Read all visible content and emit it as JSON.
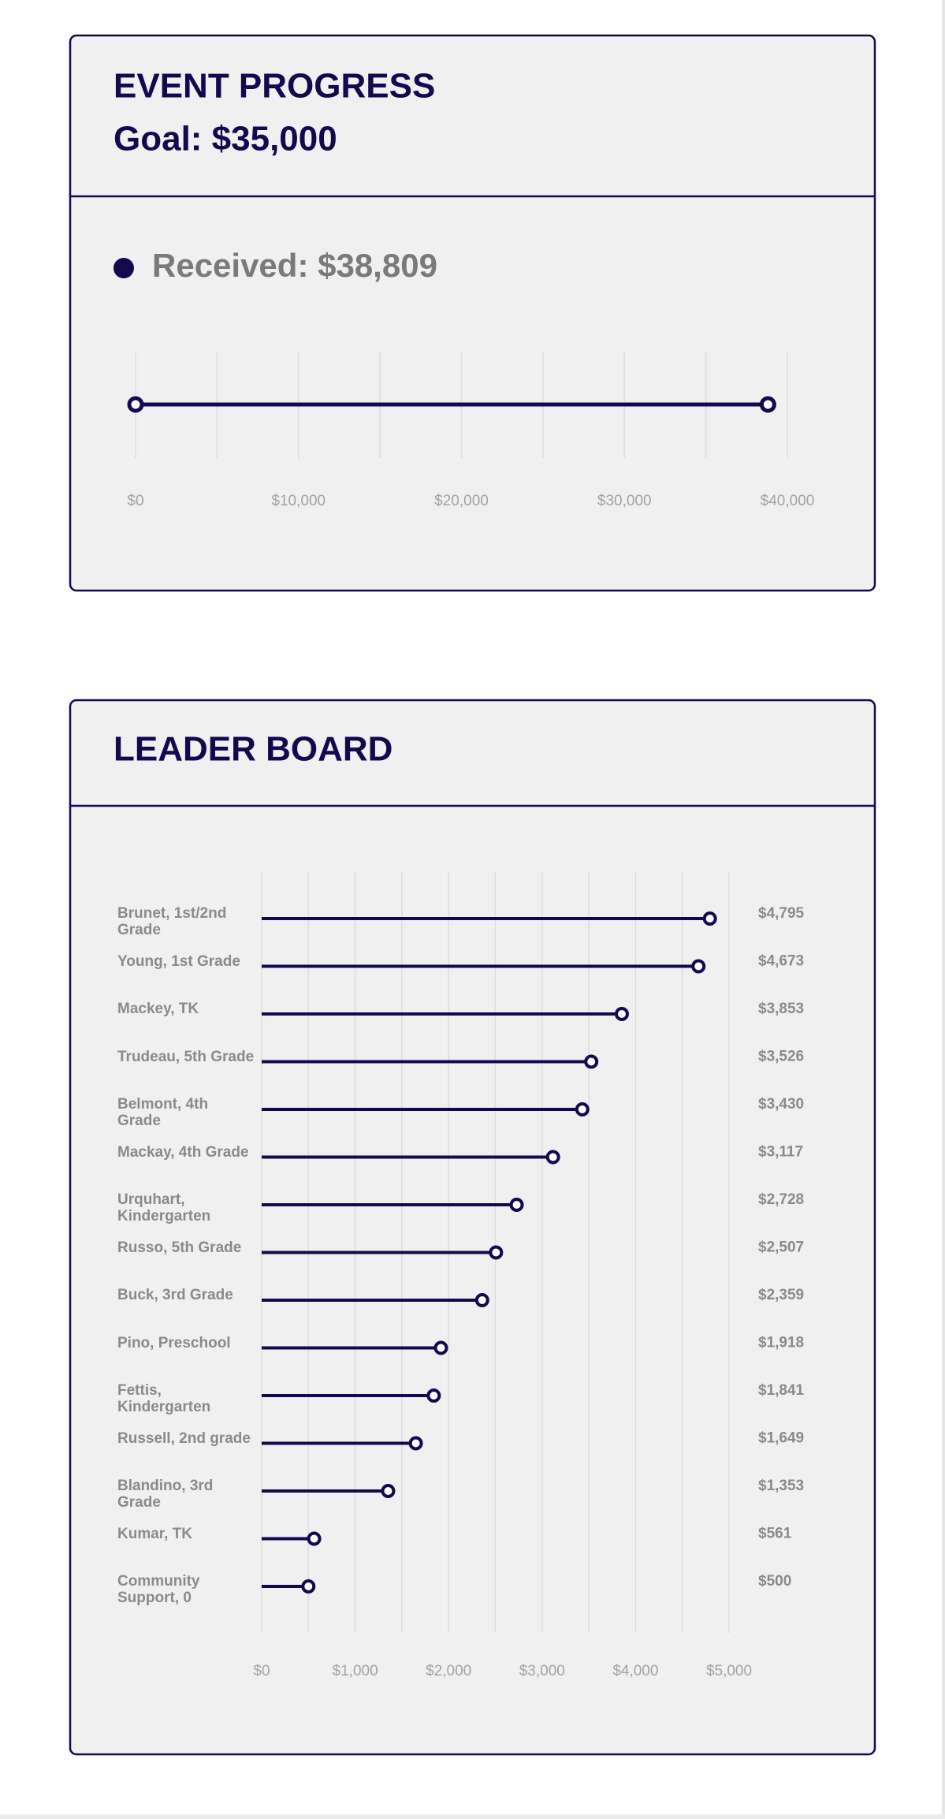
{
  "chart_data": [
    {
      "type": "progress",
      "title": "EVENT PROGRESS",
      "subtitle": "Goal: $35,000",
      "series": [
        {
          "name": "Received: $38,809",
          "color": "#14084f",
          "values": [
            38809
          ]
        }
      ],
      "xlim": [
        0,
        40000
      ],
      "xticks": [
        {
          "value": 0,
          "label": "$0"
        },
        {
          "value": 10000,
          "label": "$10,000"
        },
        {
          "value": 20000,
          "label": "$20,000"
        },
        {
          "value": 30000,
          "label": "$30,000"
        },
        {
          "value": 40000,
          "label": "$40,000"
        }
      ],
      "minor_xticks": [
        5000,
        15000,
        25000,
        35000
      ],
      "grid": true
    },
    {
      "type": "lollipop",
      "title": "LEADER BOARD",
      "categories": [
        "Brunet, 1st/2nd Grade",
        "Young, 1st Grade",
        "Mackey, TK",
        "Trudeau, 5th Grade",
        "Belmont, 4th Grade",
        "Mackay, 4th Grade",
        "Urquhart, Kindergarten",
        "Russo, 5th Grade",
        "Buck, 3rd Grade",
        "Pino, Preschool",
        "Fettis, Kindergarten",
        "Russell, 2nd grade",
        "Blandino, 3rd Grade",
        "Kumar, TK",
        "Community Support, 0"
      ],
      "values": [
        4795,
        4673,
        3853,
        3526,
        3430,
        3117,
        2728,
        2507,
        2359,
        1918,
        1841,
        1649,
        1353,
        561,
        500
      ],
      "value_labels": [
        "$4,795",
        "$4,673",
        "$3,853",
        "$3,526",
        "$3,430",
        "$3,117",
        "$2,728",
        "$2,507",
        "$2,359",
        "$1,918",
        "$1,841",
        "$1,649",
        "$1,353",
        "$561",
        "$500"
      ],
      "color": "#14084f",
      "xlim": [
        0,
        5000
      ],
      "xticks": [
        {
          "value": 0,
          "label": "$0"
        },
        {
          "value": 1000,
          "label": "$1,000"
        },
        {
          "value": 2000,
          "label": "$2,000"
        },
        {
          "value": 3000,
          "label": "$3,000"
        },
        {
          "value": 4000,
          "label": "$4,000"
        },
        {
          "value": 5000,
          "label": "$5,000"
        }
      ],
      "minor_xticks": [
        500,
        1500,
        2500,
        3500,
        4500
      ],
      "grid": true
    }
  ]
}
